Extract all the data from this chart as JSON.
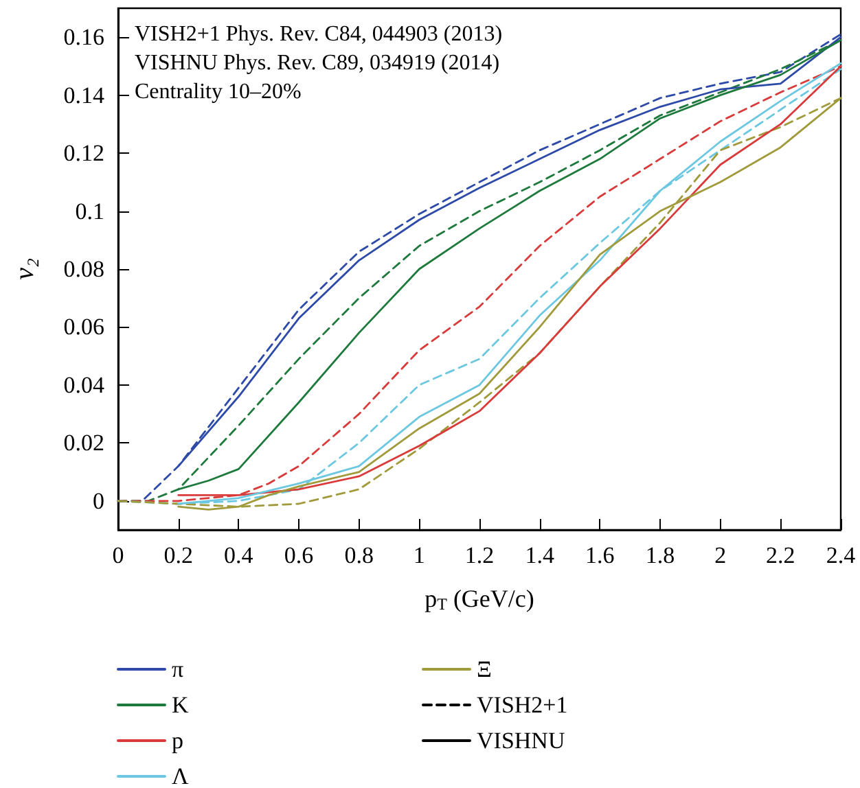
{
  "chart_data": {
    "type": "line",
    "xlabel": "p$_{T}$ (GeV/c)",
    "ylabel": "ν₂",
    "annotations": [
      "VISH2+1 Phys. Rev. C84, 044903 (2013)",
      "VISHNU Phys. Rev. C89, 034919 (2014)",
      "Centrality 10–20%"
    ],
    "xlim": [
      0,
      2.4
    ],
    "xticks": [
      0,
      0.2,
      0.4,
      0.6,
      0.8,
      1,
      1.2,
      1.4,
      1.6,
      1.8,
      2,
      2.2,
      2.4
    ],
    "ylim": [
      -0.01,
      0.17
    ],
    "yticks": [
      0,
      0.02,
      0.04,
      0.06,
      0.08,
      0.1,
      0.12,
      0.14,
      0.16
    ],
    "grid": false,
    "legend": "bottom",
    "marker": "none",
    "series": [
      {
        "name": "π",
        "color": "#2e4aa8",
        "line_style": "solid",
        "x": [
          0.2,
          0.4,
          0.6,
          0.8,
          1,
          1.2,
          1.4,
          1.6,
          1.8,
          2,
          2.2,
          2.4
        ],
        "values": [
          0.012,
          0.036,
          0.063,
          0.083,
          0.097,
          0.108,
          0.118,
          0.128,
          0.136,
          0.142,
          0.144,
          0.16
        ]
      },
      {
        "name": "K",
        "color": "#1e7a3c",
        "line_style": "solid",
        "x": [
          0.2,
          0.3,
          0.4,
          0.6,
          0.8,
          1,
          1.2,
          1.4,
          1.6,
          1.8,
          2,
          2.2,
          2.4
        ],
        "values": [
          0.004,
          0.007,
          0.011,
          0.034,
          0.058,
          0.08,
          0.094,
          0.107,
          0.118,
          0.132,
          0.14,
          0.147,
          0.159
        ]
      },
      {
        "name": "p",
        "color": "#d93a3a",
        "line_style": "solid",
        "x": [
          0.2,
          0.4,
          0.6,
          0.8,
          1,
          1.1,
          1.2,
          1.4,
          1.6,
          1.8,
          2,
          2.2,
          2.4
        ],
        "values": [
          0.002,
          0.002,
          0.004,
          0.0085,
          0.019,
          0.025,
          0.031,
          0.051,
          0.074,
          0.094,
          0.116,
          0.13,
          0.15
        ]
      },
      {
        "name": "Λ",
        "color": "#6cc8e0",
        "line_style": "solid",
        "x": [
          0.2,
          0.4,
          0.6,
          0.8,
          1,
          1.2,
          1.4,
          1.6,
          1.8,
          2,
          2.2,
          2.4
        ],
        "values": [
          -0.001,
          0.001,
          0.006,
          0.012,
          0.029,
          0.04,
          0.064,
          0.083,
          0.107,
          0.124,
          0.138,
          0.151
        ]
      },
      {
        "name": "Ξ",
        "color": "#a09a3a",
        "line_style": "solid",
        "x": [
          0.2,
          0.3,
          0.4,
          0.5,
          0.6,
          0.8,
          1,
          1.2,
          1.4,
          1.6,
          1.8,
          2,
          2.2,
          2.4
        ],
        "values": [
          -0.002,
          -0.003,
          -0.002,
          0.002,
          0.005,
          0.01,
          0.025,
          0.037,
          0.06,
          0.085,
          0.1,
          0.11,
          0.122,
          0.139
        ]
      },
      {
        "name": "VISH2+1",
        "color": "#000000",
        "line_style": "dashed"
      },
      {
        "name": "VISHNU",
        "color": "#000000",
        "line_style": "solid"
      },
      {
        "color": "#2e4aa8",
        "line_style": "dashed",
        "x": [
          0,
          0.08,
          0.2,
          0.4,
          0.6,
          0.8,
          1,
          1.2,
          1.4,
          1.6,
          1.8,
          2,
          2.2,
          2.4
        ],
        "values": [
          0,
          0,
          0.012,
          0.039,
          0.066,
          0.086,
          0.099,
          0.11,
          0.121,
          0.13,
          0.139,
          0.144,
          0.148,
          0.161
        ]
      },
      {
        "color": "#1e7a3c",
        "line_style": "dashed",
        "x": [
          0,
          0.1,
          0.2,
          0.4,
          0.6,
          0.8,
          1,
          1.2,
          1.4,
          1.6,
          1.8,
          2,
          2.2,
          2.4
        ],
        "values": [
          0,
          0,
          0.004,
          0.026,
          0.049,
          0.07,
          0.088,
          0.1,
          0.11,
          0.121,
          0.133,
          0.141,
          0.149,
          0.159
        ]
      },
      {
        "color": "#d93a3a",
        "line_style": "dashed",
        "x": [
          0,
          0.2,
          0.4,
          0.5,
          0.6,
          0.8,
          1,
          1.2,
          1.4,
          1.6,
          1.8,
          2,
          2.2,
          2.4
        ],
        "values": [
          0,
          0,
          0.002,
          0.006,
          0.012,
          0.03,
          0.052,
          0.067,
          0.088,
          0.105,
          0.118,
          0.131,
          0.141,
          0.15
        ]
      },
      {
        "color": "#6cc8e0",
        "line_style": "dashed",
        "x": [
          0,
          0.2,
          0.4,
          0.6,
          0.8,
          1,
          1.2,
          1.4,
          1.6,
          1.8,
          2,
          2.2,
          2.4
        ],
        "values": [
          0,
          -0.001,
          0,
          0.004,
          0.02,
          0.04,
          0.049,
          0.07,
          0.089,
          0.107,
          0.121,
          0.135,
          0.149
        ]
      },
      {
        "color": "#a09a3a",
        "line_style": "dashed",
        "x": [
          0,
          0.2,
          0.4,
          0.6,
          0.8,
          1,
          1.2,
          1.4,
          1.6,
          1.8,
          2,
          2.2,
          2.4
        ],
        "values": [
          0,
          -0.001,
          -0.002,
          -0.001,
          0.004,
          0.018,
          0.034,
          0.051,
          0.074,
          0.096,
          0.121,
          0.129,
          0.139
        ]
      }
    ]
  }
}
